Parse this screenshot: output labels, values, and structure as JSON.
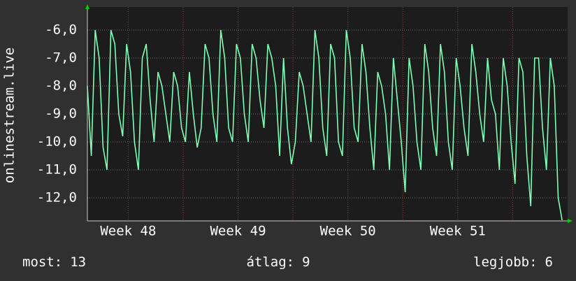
{
  "chart_data": {
    "type": "line",
    "ylabel": "onlinestream.live",
    "x": [
      0,
      0.25,
      0.5,
      0.75,
      1,
      1.25,
      1.5,
      1.75,
      2,
      2.25,
      2.5,
      2.75,
      3,
      3.25,
      3.5,
      3.75,
      4,
      4.25,
      4.5,
      4.75,
      5,
      5.25,
      5.5,
      5.75,
      6,
      6.25,
      6.5,
      6.75,
      7,
      7.25,
      7.5,
      7.75,
      8,
      8.25,
      8.5,
      8.75,
      9,
      9.25,
      9.5,
      9.75,
      10,
      10.25,
      10.5,
      10.75,
      11,
      11.25,
      11.5,
      11.75,
      12,
      12.25,
      12.5,
      12.75,
      13,
      13.25,
      13.5,
      13.75,
      14,
      14.25,
      14.5,
      14.75,
      15,
      15.25,
      15.5,
      15.75,
      16,
      16.25,
      16.5,
      16.75,
      17,
      17.25,
      17.5,
      17.75,
      18,
      18.25,
      18.5,
      18.75,
      19,
      19.25,
      19.5,
      19.75,
      20,
      20.25,
      20.5,
      20.75,
      21,
      21.25,
      21.5,
      21.75,
      22,
      22.25,
      22.5,
      22.75,
      23,
      23.25,
      23.5,
      23.75,
      24,
      24.25,
      24.5,
      24.75,
      25,
      25.25,
      25.5,
      25.75,
      26,
      26.25,
      26.5,
      26.75,
      27,
      27.25,
      27.5,
      27.75,
      28,
      28.25,
      28.5,
      28.75,
      29,
      29.25,
      29.5,
      29.75,
      30,
      30.25
    ],
    "series": [
      {
        "name": "onlinestream.live",
        "color": "#7dffb4",
        "values": [
          -8.0,
          -10.5,
          -6.0,
          -7.0,
          -10.2,
          -11.0,
          -6.0,
          -6.5,
          -9.0,
          -9.8,
          -6.5,
          -7.5,
          -10.0,
          -11.0,
          -7.0,
          -6.5,
          -8.5,
          -10.0,
          -7.5,
          -8.0,
          -9.0,
          -10.0,
          -7.5,
          -8.0,
          -9.5,
          -10.0,
          -7.5,
          -9.0,
          -10.2,
          -9.5,
          -6.5,
          -7.0,
          -9.0,
          -10.0,
          -6.0,
          -7.0,
          -9.5,
          -10.0,
          -6.5,
          -7.0,
          -9.0,
          -10.0,
          -6.5,
          -7.0,
          -8.5,
          -9.5,
          -6.5,
          -7.0,
          -8.0,
          -10.5,
          -7.0,
          -9.5,
          -10.8,
          -10.0,
          -7.5,
          -8.0,
          -9.0,
          -10.0,
          -6.0,
          -7.0,
          -9.5,
          -10.5,
          -6.5,
          -7.0,
          -10.0,
          -10.5,
          -6.0,
          -7.0,
          -9.5,
          -10.0,
          -6.5,
          -7.5,
          -9.5,
          -11.0,
          -7.5,
          -8.0,
          -9.0,
          -11.0,
          -7.0,
          -8.5,
          -10.0,
          -11.8,
          -7.0,
          -8.0,
          -10.0,
          -11.0,
          -6.5,
          -7.5,
          -9.5,
          -10.5,
          -6.5,
          -7.5,
          -10.0,
          -11.0,
          -7.0,
          -8.0,
          -9.5,
          -10.5,
          -6.5,
          -7.5,
          -9.0,
          -10.0,
          -7.0,
          -8.5,
          -9.0,
          -11.0,
          -7.0,
          -8.0,
          -10.0,
          -11.5,
          -7.0,
          -7.5,
          -10.5,
          -12.3,
          -7.0,
          -7.0,
          -9.5,
          -11.0,
          -7.0,
          -8.0,
          -12.0,
          -12.8
        ]
      }
    ],
    "xlim": [
      0,
      30.6
    ],
    "xticks": [
      {
        "value": 2.6,
        "label": "Week 48"
      },
      {
        "value": 9.6,
        "label": "Week 49"
      },
      {
        "value": 16.6,
        "label": "Week 50"
      },
      {
        "value": 23.6,
        "label": "Week 51"
      }
    ],
    "xgrid_major": [
      6.1,
      13.1,
      20.1,
      27.1
    ],
    "ylim": [
      -12.825,
      -5.175
    ],
    "yticks": [
      {
        "value": -6,
        "label": "-6,0"
      },
      {
        "value": -7,
        "label": "-7,0"
      },
      {
        "value": -8,
        "label": "-8,0"
      },
      {
        "value": -9,
        "label": "-9,0"
      },
      {
        "value": -10,
        "label": "-10,0"
      },
      {
        "value": -11,
        "label": "-11,0"
      },
      {
        "value": -12,
        "label": "-12,0"
      }
    ],
    "grid": true,
    "stats": [
      {
        "label": "most:",
        "value": 13
      },
      {
        "label": "átlag:",
        "value": 9
      },
      {
        "label": "legjobb:",
        "value": 6
      }
    ]
  }
}
